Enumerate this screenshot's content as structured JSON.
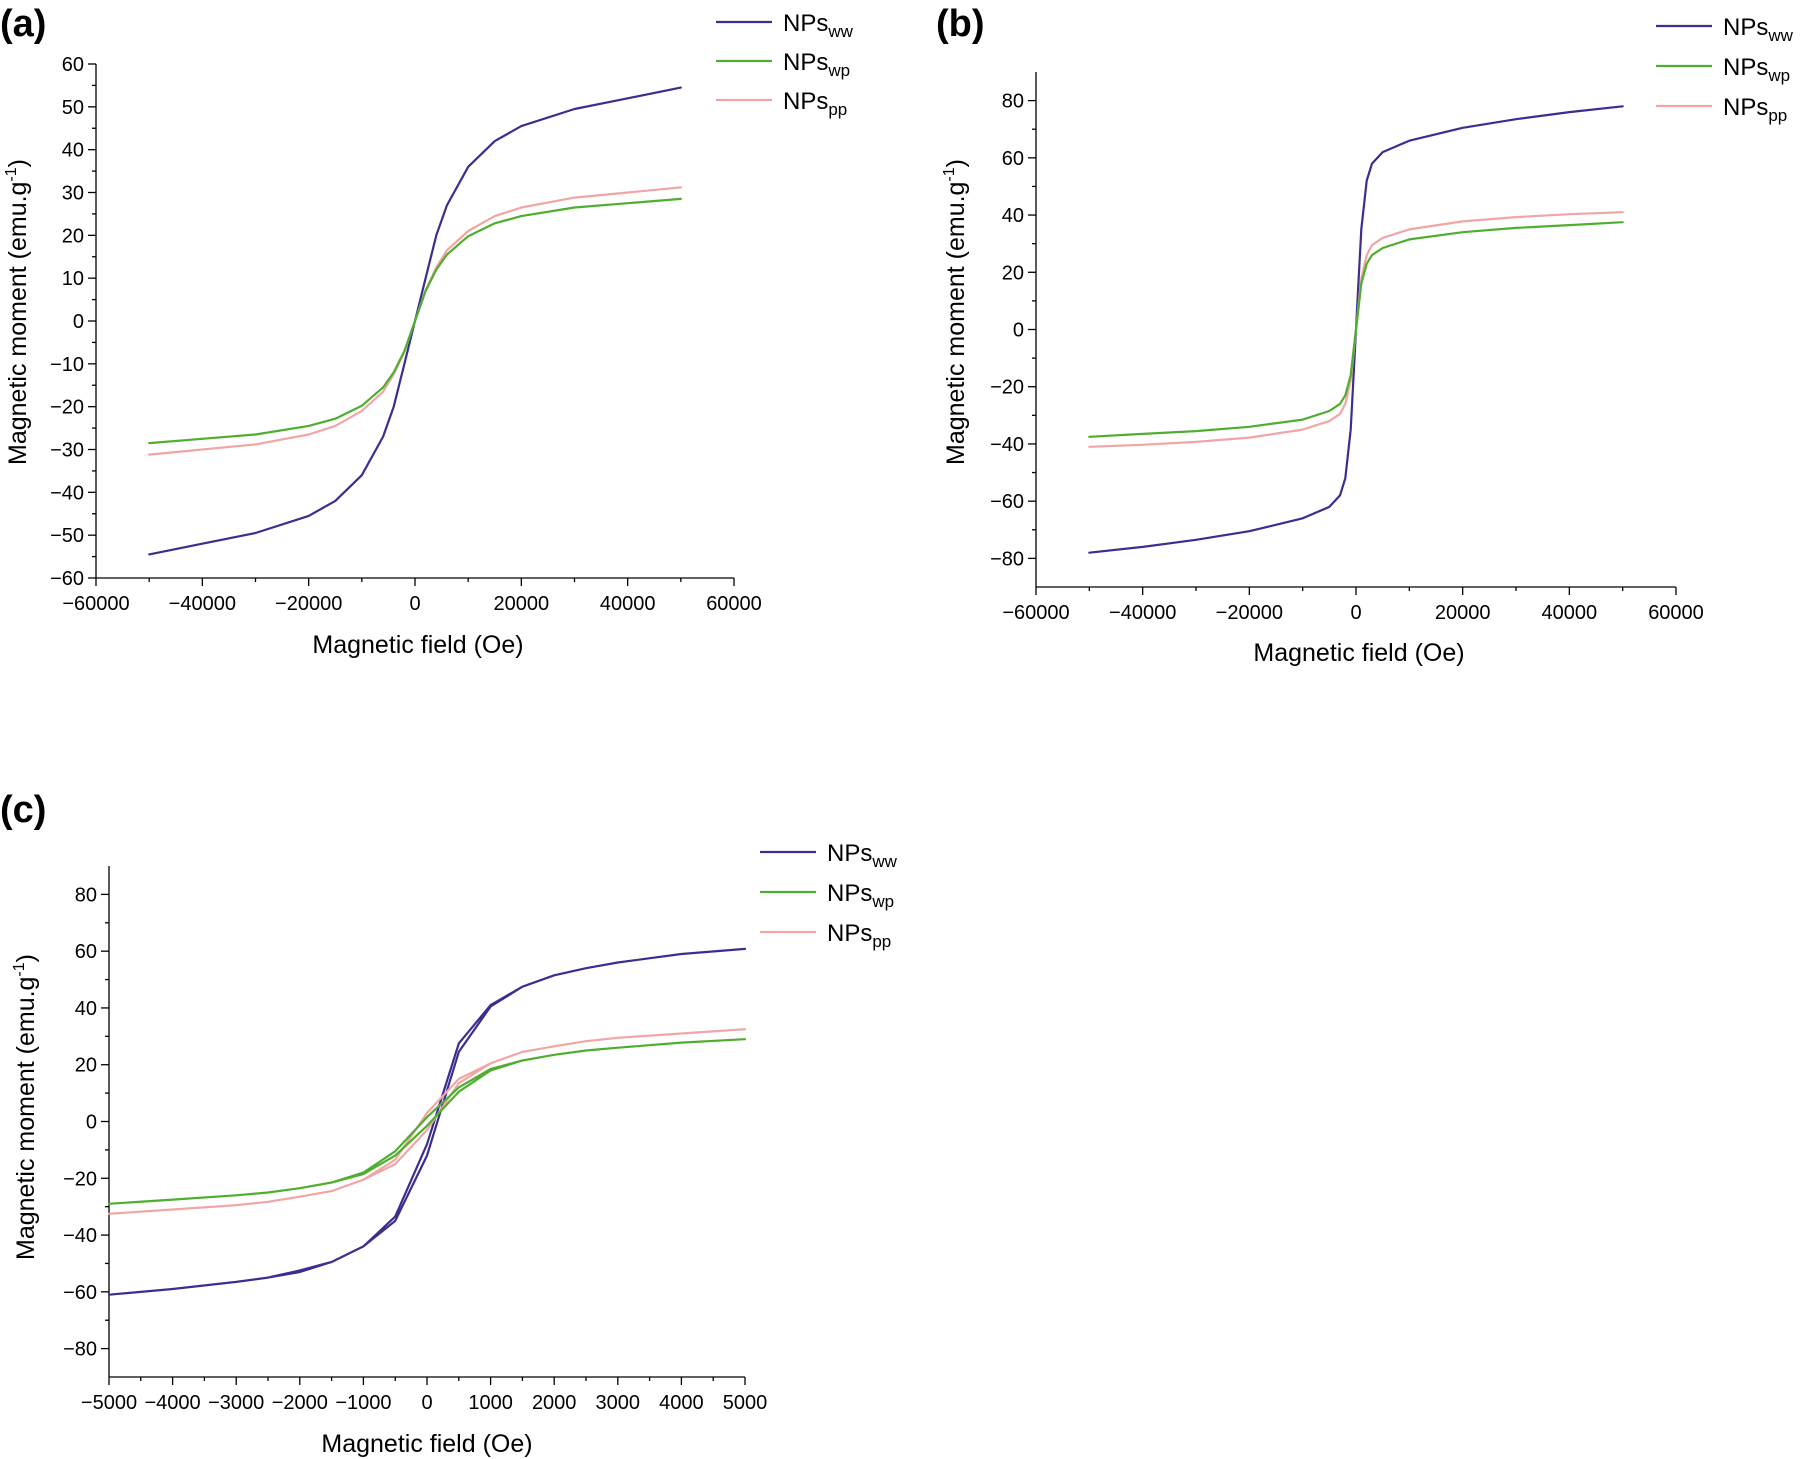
{
  "colors": {
    "ww": "#3a2e8f",
    "wp": "#4fae2f",
    "pp": "#f2a5a5"
  },
  "chart_data": [
    {
      "panel": "(a)",
      "type": "line",
      "xlabel": "Magnetic field (Oe)",
      "ylabel_main": "Magnetic moment (emu.g",
      "ylabel_sup": "-1",
      "ylabel_close": ")",
      "xlim": [
        -60000,
        60000
      ],
      "ylim": [
        -60,
        60
      ],
      "xticks": [
        -60000,
        -40000,
        -20000,
        0,
        20000,
        40000,
        60000
      ],
      "yticks": [
        -60,
        -50,
        -40,
        -30,
        -20,
        -10,
        0,
        10,
        20,
        30,
        40,
        50,
        60
      ],
      "legend": "top-right",
      "series": [
        {
          "key": "ww",
          "name_main": "NPs",
          "name_sub": "ww",
          "x": [
            -50000,
            -40000,
            -30000,
            -20000,
            -15000,
            -10000,
            -6000,
            -4000,
            -2000,
            -1000,
            0,
            1000,
            2000,
            4000,
            6000,
            10000,
            15000,
            20000,
            30000,
            40000,
            50000
          ],
          "y": [
            -54.5,
            -52,
            -49.5,
            -45.5,
            -42,
            -36,
            -27,
            -20,
            -10,
            -5,
            0,
            5,
            10,
            20,
            27,
            36,
            42,
            45.5,
            49.5,
            52,
            54.5
          ]
        },
        {
          "key": "wp",
          "name_main": "NPs",
          "name_sub": "wp",
          "x": [
            -50000,
            -40000,
            -30000,
            -20000,
            -15000,
            -10000,
            -6000,
            -4000,
            -2000,
            -1000,
            0,
            1000,
            2000,
            4000,
            6000,
            10000,
            15000,
            20000,
            30000,
            40000,
            50000
          ],
          "y": [
            -28.5,
            -27.5,
            -26.5,
            -24.5,
            -22.8,
            -19.8,
            -15.5,
            -12,
            -7,
            -3.5,
            0,
            3.5,
            7,
            12,
            15.5,
            19.8,
            22.8,
            24.5,
            26.5,
            27.5,
            28.5
          ]
        },
        {
          "key": "pp",
          "name_main": "NPs",
          "name_sub": "pp",
          "x": [
            -50000,
            -40000,
            -30000,
            -20000,
            -15000,
            -10000,
            -6000,
            -4000,
            -2000,
            -1000,
            0,
            1000,
            2000,
            4000,
            6000,
            10000,
            15000,
            20000,
            30000,
            40000,
            50000
          ],
          "y": [
            -31.2,
            -30,
            -28.8,
            -26.5,
            -24.5,
            -21,
            -16.5,
            -12.5,
            -7.2,
            -3.6,
            0,
            3.6,
            7.2,
            12.5,
            16.5,
            21,
            24.5,
            26.5,
            28.8,
            30,
            31.2
          ]
        }
      ]
    },
    {
      "panel": "(b)",
      "type": "line",
      "xlabel": "Magnetic field (Oe)",
      "ylabel_main": "Magnetic moment (emu.g",
      "ylabel_sup": "-1",
      "ylabel_close": ")",
      "xlim": [
        -60000,
        60000
      ],
      "ylim": [
        -90,
        90
      ],
      "xticks": [
        -60000,
        -40000,
        -20000,
        0,
        20000,
        40000,
        60000
      ],
      "yticks": [
        -80,
        -60,
        -40,
        -20,
        0,
        20,
        40,
        60,
        80
      ],
      "legend": "top-right",
      "series": [
        {
          "key": "ww",
          "name_main": "NPs",
          "name_sub": "ww",
          "x": [
            -50000,
            -40000,
            -30000,
            -20000,
            -10000,
            -5000,
            -3000,
            -2000,
            -1000,
            -500,
            0,
            500,
            1000,
            2000,
            3000,
            5000,
            10000,
            20000,
            30000,
            40000,
            50000
          ],
          "y": [
            -78,
            -76,
            -73.5,
            -70.5,
            -66,
            -62,
            -58,
            -52,
            -35,
            -18,
            0,
            18,
            35,
            52,
            58,
            62,
            66,
            70.5,
            73.5,
            76,
            78
          ]
        },
        {
          "key": "wp",
          "name_main": "NPs",
          "name_sub": "wp",
          "x": [
            -50000,
            -40000,
            -30000,
            -20000,
            -10000,
            -5000,
            -3000,
            -2000,
            -1000,
            -500,
            0,
            500,
            1000,
            2000,
            3000,
            5000,
            10000,
            20000,
            30000,
            40000,
            50000
          ],
          "y": [
            -37.5,
            -36.5,
            -35.5,
            -34,
            -31.5,
            -28.5,
            -26,
            -23,
            -16,
            -8,
            0,
            8,
            16,
            23,
            26,
            28.5,
            31.5,
            34,
            35.5,
            36.5,
            37.5
          ]
        },
        {
          "key": "pp",
          "name_main": "NPs",
          "name_sub": "pp",
          "x": [
            -50000,
            -40000,
            -30000,
            -20000,
            -10000,
            -5000,
            -3000,
            -2000,
            -1000,
            -500,
            0,
            500,
            1000,
            2000,
            3000,
            5000,
            10000,
            20000,
            30000,
            40000,
            50000
          ],
          "y": [
            -41,
            -40.3,
            -39.3,
            -37.8,
            -35,
            -32,
            -29.5,
            -26,
            -18,
            -9,
            0,
            9,
            18,
            26,
            29.5,
            32,
            35,
            37.8,
            39.3,
            40.3,
            41
          ]
        }
      ]
    },
    {
      "panel": "(c)",
      "type": "line",
      "xlabel": "Magnetic field (Oe)",
      "ylabel_main": "Magnetic moment (emu.g",
      "ylabel_sup": "-1",
      "ylabel_close": ")",
      "xlim": [
        -5000,
        5000
      ],
      "ylim": [
        -90,
        90
      ],
      "xticks": [
        -5000,
        -4000,
        -3000,
        -2000,
        -1000,
        0,
        1000,
        2000,
        3000,
        4000,
        5000
      ],
      "yticks": [
        -80,
        -60,
        -40,
        -20,
        0,
        20,
        40,
        60,
        80
      ],
      "legend": "top-right",
      "series": [
        {
          "key": "ww",
          "name_main": "NPs",
          "name_sub": "ww",
          "x": [
            -5000,
            -4000,
            -3000,
            -2500,
            -2000,
            -1500,
            -1000,
            -500,
            0,
            500,
            1000,
            1500,
            2000,
            2500,
            3000,
            4000,
            5000,
            5000,
            4000,
            3000,
            2500,
            2000,
            1500,
            1000,
            500,
            0,
            -500,
            -1000,
            -1500,
            -2000,
            -2500,
            -3000,
            -4000,
            -5000
          ],
          "y": [
            -61,
            -59,
            -56.5,
            -55,
            -52.5,
            -49.5,
            -44,
            -33.5,
            -8,
            27.5,
            41,
            47.5,
            51.5,
            54,
            56,
            59,
            60.8,
            60.8,
            59,
            56,
            54,
            51.5,
            47.5,
            40.5,
            24.5,
            -12,
            -35,
            -44,
            -49.5,
            -53,
            -55,
            -56.5,
            -59,
            -61
          ]
        },
        {
          "key": "wp",
          "name_main": "NPs",
          "name_sub": "wp",
          "x": [
            -5000,
            -4000,
            -3000,
            -2500,
            -2000,
            -1500,
            -1000,
            -500,
            0,
            500,
            1000,
            1500,
            2000,
            2500,
            3000,
            4000,
            5000,
            5000,
            4000,
            3000,
            2500,
            2000,
            1500,
            1000,
            500,
            0,
            -500,
            -1000,
            -1500,
            -2000,
            -2500,
            -3000,
            -4000,
            -5000
          ],
          "y": [
            -29,
            -27.5,
            -26,
            -25,
            -23.5,
            -21.5,
            -18,
            -10.5,
            1.5,
            12,
            18.5,
            21.5,
            23.5,
            25,
            26,
            27.8,
            29,
            29,
            27.8,
            26,
            25,
            23.5,
            21.5,
            18,
            10.5,
            -1.5,
            -12,
            -18.5,
            -21.5,
            -23.5,
            -25,
            -26,
            -27.5,
            -29
          ]
        },
        {
          "key": "pp",
          "name_main": "NPs",
          "name_sub": "pp",
          "x": [
            -5000,
            -4000,
            -3000,
            -2500,
            -2000,
            -1500,
            -1000,
            -500,
            0,
            500,
            1000,
            1500,
            2000,
            2500,
            3000,
            4000,
            5000,
            5000,
            4000,
            3000,
            2500,
            2000,
            1500,
            1000,
            500,
            0,
            -500,
            -1000,
            -1500,
            -2000,
            -2500,
            -3000,
            -4000,
            -5000
          ],
          "y": [
            -32.5,
            -31,
            -29.5,
            -28.3,
            -26.5,
            -24.5,
            -20.5,
            -13.5,
            3,
            15,
            20.5,
            24.5,
            26.5,
            28.3,
            29.5,
            31,
            32.5,
            32.5,
            31,
            29.5,
            28.3,
            26.5,
            24.5,
            20.5,
            13.5,
            -3,
            -15,
            -20.5,
            -24.5,
            -26.5,
            -28.3,
            -29.5,
            -31,
            -32.5
          ]
        }
      ]
    }
  ]
}
